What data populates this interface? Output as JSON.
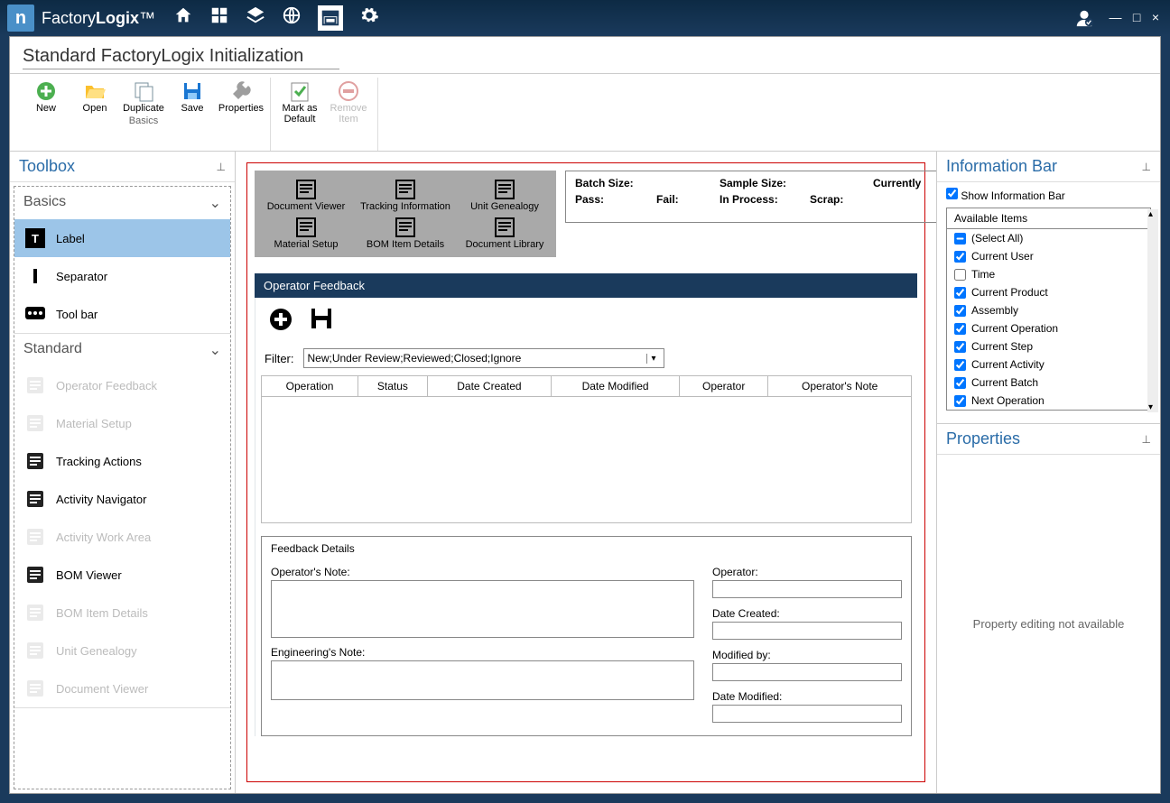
{
  "app": {
    "name_a": "Factory",
    "name_b": "Logix",
    "trademark": "™"
  },
  "window": {
    "user_icon": "user",
    "min": "—",
    "max": "□",
    "close": "×"
  },
  "header": {
    "title": "Standard FactoryLogix Initialization"
  },
  "ribbon": {
    "group1_label": "Basics",
    "items1": [
      {
        "label": "New"
      },
      {
        "label": "Open"
      },
      {
        "label": "Duplicate"
      },
      {
        "label": "Save"
      },
      {
        "label": "Properties"
      }
    ],
    "items2": [
      {
        "label": "Mark as Default"
      },
      {
        "label": "Remove Item",
        "disabled": true
      }
    ]
  },
  "toolbox": {
    "title": "Toolbox",
    "sections": {
      "basics": {
        "title": "Basics",
        "items": [
          {
            "label": "Label",
            "selected": true
          },
          {
            "label": "Separator"
          },
          {
            "label": "Tool bar"
          }
        ]
      },
      "standard": {
        "title": "Standard",
        "items": [
          {
            "label": "Operator Feedback",
            "disabled": true
          },
          {
            "label": "Material Setup",
            "disabled": true
          },
          {
            "label": "Tracking Actions"
          },
          {
            "label": "Activity Navigator"
          },
          {
            "label": "Activity Work Area",
            "disabled": true
          },
          {
            "label": "BOM Viewer"
          },
          {
            "label": "BOM Item Details",
            "disabled": true
          },
          {
            "label": "Unit Genealogy",
            "disabled": true
          },
          {
            "label": "Document Viewer",
            "disabled": true
          }
        ]
      }
    }
  },
  "canvas": {
    "greybar": {
      "row1": [
        "Document Viewer",
        "Tracking Information",
        "Unit Genealogy"
      ],
      "row2": [
        "Material Setup",
        "BOM Item Details",
        "Document Library"
      ]
    },
    "infobox": {
      "batch_size": "Batch Size:",
      "sample_size": "Sample Size:",
      "currently": "Currently",
      "pass": "Pass:",
      "fail": "Fail:",
      "in_process": "In Process:",
      "scrap": "Scrap:"
    },
    "op_feedback_title": "Operator Feedback",
    "filter_label": "Filter:",
    "filter_value": "New;Under Review;Reviewed;Closed;Ignore",
    "grid_cols": [
      "Operation",
      "Status",
      "Date Created",
      "Date Modified",
      "Operator",
      "Operator's Note"
    ],
    "details": {
      "title": "Feedback Details",
      "op_note": "Operator's Note:",
      "eng_note": "Engineering's Note:",
      "operator": "Operator:",
      "date_created": "Date Created:",
      "modified_by": "Modified by:",
      "date_modified": "Date Modified:"
    }
  },
  "info_bar": {
    "title": "Information Bar",
    "show_label": "Show Information Bar",
    "avail_title": "Available Items",
    "items": [
      {
        "label": "(Select All)",
        "state": "indeterminate"
      },
      {
        "label": "Current User",
        "state": "checked"
      },
      {
        "label": "Time",
        "state": "unchecked"
      },
      {
        "label": "Current Product",
        "state": "checked"
      },
      {
        "label": "Assembly",
        "state": "checked"
      },
      {
        "label": "Current Operation",
        "state": "checked"
      },
      {
        "label": "Current Step",
        "state": "checked"
      },
      {
        "label": "Current Activity",
        "state": "checked"
      },
      {
        "label": "Current Batch",
        "state": "checked"
      },
      {
        "label": "Next Operation",
        "state": "checked"
      }
    ]
  },
  "properties": {
    "title": "Properties",
    "empty": "Property editing not available"
  }
}
